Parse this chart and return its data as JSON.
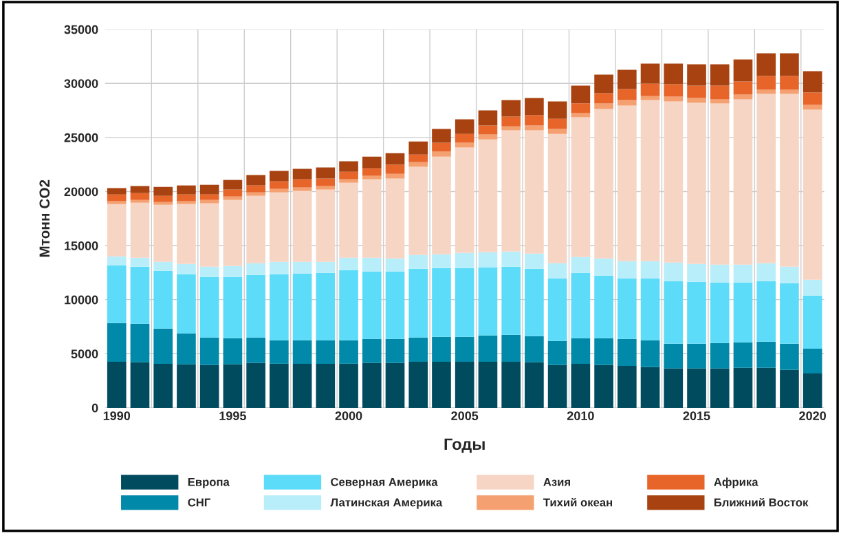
{
  "chart_data": {
    "type": "bar",
    "stacked": true,
    "xlabel": "Годы",
    "ylabel": "Мтонн CO2",
    "categories": [
      "1990",
      null,
      null,
      null,
      null,
      "1995",
      null,
      null,
      null,
      null,
      "2000",
      null,
      null,
      null,
      null,
      "2005",
      null,
      null,
      null,
      null,
      "2010",
      null,
      null,
      null,
      null,
      "2015",
      null,
      null,
      null,
      null,
      "2020"
    ],
    "ylim": [
      0,
      35000
    ],
    "yticks": [
      0,
      5000,
      10000,
      15000,
      20000,
      25000,
      30000,
      35000
    ],
    "grid": true,
    "legend": "bottom",
    "series": [
      {
        "name": "Европа",
        "color": "#004b5e",
        "values": [
          4260,
          4200,
          4070,
          4010,
          3950,
          4010,
          4140,
          4070,
          4070,
          4070,
          4070,
          4140,
          4140,
          4260,
          4260,
          4260,
          4260,
          4260,
          4200,
          3950,
          4070,
          3950,
          3880,
          3760,
          3630,
          3630,
          3630,
          3690,
          3690,
          3500,
          3180
        ]
      },
      {
        "name": "СНГ",
        "color": "#0089a8",
        "values": [
          3570,
          3570,
          3250,
          2860,
          2540,
          2420,
          2350,
          2170,
          2170,
          2170,
          2170,
          2230,
          2230,
          2230,
          2300,
          2300,
          2420,
          2490,
          2420,
          2220,
          2360,
          2480,
          2490,
          2480,
          2290,
          2290,
          2350,
          2360,
          2420,
          2420,
          2290
        ]
      },
      {
        "name": "Северная Америка",
        "color": "#5ddcfa",
        "values": [
          5350,
          5280,
          5350,
          5480,
          5600,
          5660,
          5800,
          6110,
          6170,
          6240,
          6490,
          6230,
          6230,
          6370,
          6360,
          6360,
          6310,
          6300,
          6240,
          5800,
          6050,
          5790,
          5600,
          5730,
          5790,
          5730,
          5610,
          5540,
          5600,
          5600,
          4910
        ]
      },
      {
        "name": "Латинская Америка",
        "color": "#b8eefa",
        "values": [
          820,
          830,
          820,
          950,
          960,
          1020,
          1080,
          1140,
          1080,
          1010,
          1150,
          1280,
          1210,
          1270,
          1270,
          1400,
          1400,
          1400,
          1400,
          1400,
          1460,
          1590,
          1590,
          1590,
          1720,
          1650,
          1650,
          1650,
          1660,
          1530,
          1460
        ]
      },
      {
        "name": "Азия",
        "color": "#f7d5c5",
        "values": [
          4840,
          5090,
          5290,
          5540,
          5860,
          6110,
          6230,
          6430,
          6560,
          6690,
          6930,
          7250,
          7390,
          8150,
          9040,
          9740,
          10430,
          11200,
          11390,
          11960,
          12920,
          13820,
          14380,
          14890,
          14900,
          14900,
          14900,
          15280,
          15660,
          15980,
          15720
        ]
      },
      {
        "name": "Тихий океан",
        "color": "#f4a070",
        "values": [
          260,
          250,
          250,
          260,
          310,
          320,
          320,
          320,
          320,
          320,
          320,
          320,
          440,
          440,
          450,
          450,
          450,
          380,
          450,
          450,
          380,
          510,
          510,
          380,
          440,
          440,
          380,
          440,
          380,
          380,
          450
        ]
      },
      {
        "name": "Африка",
        "color": "#e8652a",
        "values": [
          630,
          640,
          570,
          630,
          510,
          640,
          640,
          700,
          760,
          700,
          700,
          700,
          830,
          700,
          830,
          820,
          830,
          900,
          950,
          950,
          910,
          950,
          1020,
          1150,
          1150,
          1150,
          1270,
          1210,
          1270,
          1270,
          1140
        ]
      },
      {
        "name": "Ближний Восток",
        "color": "#a84210",
        "values": [
          580,
          640,
          830,
          830,
          890,
          890,
          960,
          960,
          960,
          1020,
          960,
          1080,
          1080,
          1210,
          1270,
          1340,
          1400,
          1520,
          1590,
          1600,
          1650,
          1720,
          1780,
          1850,
          1910,
          1970,
          1970,
          2040,
          2100,
          2100,
          1980
        ]
      }
    ]
  }
}
